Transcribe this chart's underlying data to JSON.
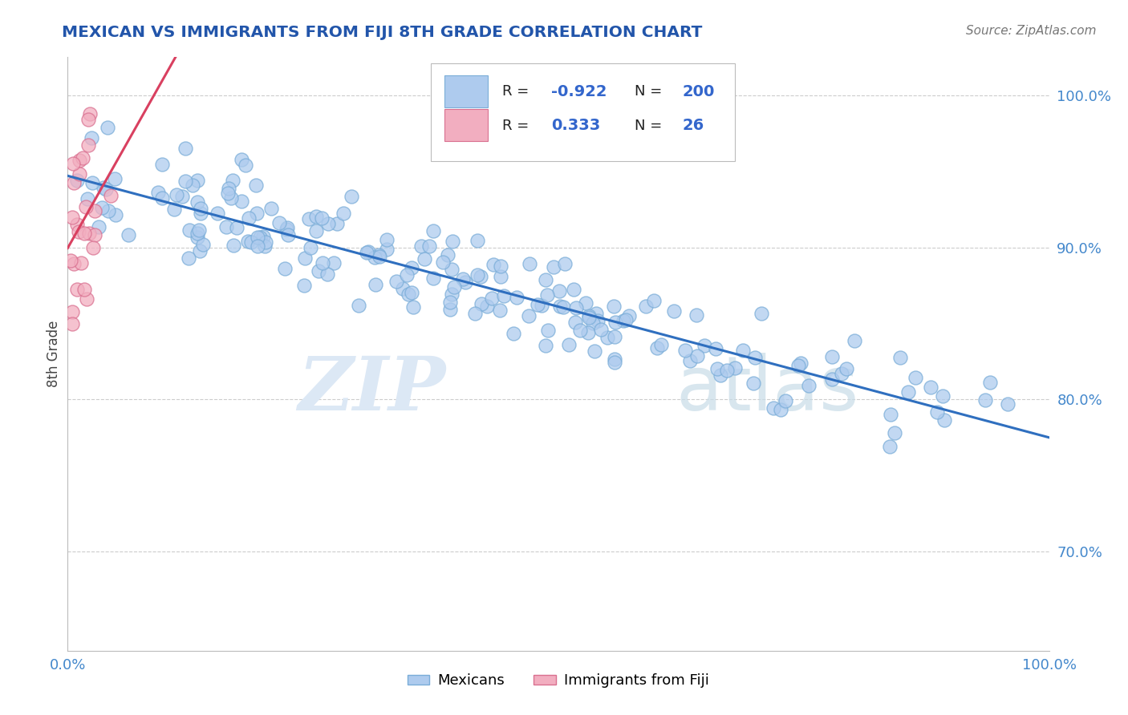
{
  "title": "MEXICAN VS IMMIGRANTS FROM FIJI 8TH GRADE CORRELATION CHART",
  "source_text": "Source: ZipAtlas.com",
  "ylabel": "8th Grade",
  "xlim": [
    0.0,
    1.0
  ],
  "ylim": [
    0.635,
    1.025
  ],
  "yticks": [
    0.7,
    0.8,
    0.9,
    1.0
  ],
  "ytick_labels": [
    "70.0%",
    "80.0%",
    "90.0%",
    "100.0%"
  ],
  "blue_color": "#aecbee",
  "blue_edge": "#7aadd8",
  "pink_color": "#f2aec0",
  "pink_edge": "#d97090",
  "blue_line_color": "#2f6fbf",
  "pink_line_color": "#d94060",
  "legend_blue_R": "-0.922",
  "legend_blue_N": "200",
  "legend_pink_R": "0.333",
  "legend_pink_N": "26",
  "watermark_zip": "ZIP",
  "watermark_atlas": "atlas",
  "legend_label_blue": "Mexicans",
  "legend_label_pink": "Immigrants from Fiji",
  "background_color": "#ffffff",
  "grid_color": "#cccccc",
  "title_color": "#2255aa",
  "tick_color": "#4488cc",
  "legend_text_color": "#222222",
  "legend_value_color": "#3366cc"
}
